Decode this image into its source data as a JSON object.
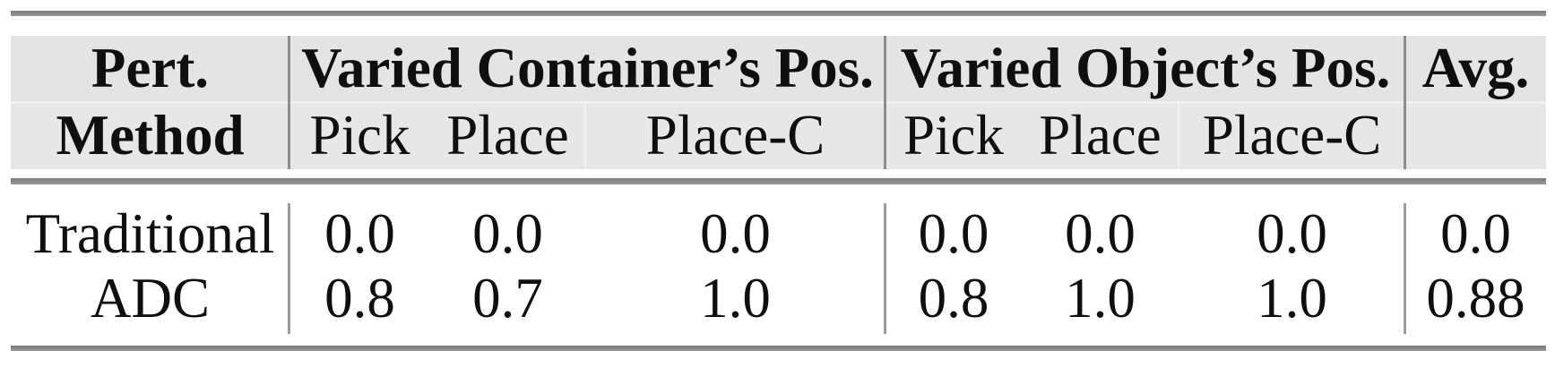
{
  "table": {
    "header": {
      "method_line1": "Pert.",
      "method_line2": "Method",
      "group_container": "Varied Container’s Pos.",
      "group_object": "Varied Object’s Pos.",
      "avg": "Avg.",
      "sub": [
        "Pick",
        "Place",
        "Place-C"
      ]
    },
    "rows": [
      {
        "method": "Traditional",
        "container": [
          "0.0",
          "0.0",
          "0.0"
        ],
        "object": [
          "0.0",
          "0.0",
          "0.0"
        ],
        "avg": "0.0"
      },
      {
        "method": "ADC",
        "container": [
          "0.8",
          "0.7",
          "1.0"
        ],
        "object": [
          "0.8",
          "1.0",
          "1.0"
        ],
        "avg": "0.88"
      }
    ]
  },
  "colors": {
    "header_bg_row1": "#e4e4e4",
    "header_bg_row2": "#e7e7e7",
    "rule": "#868686",
    "separator_header": "#8d8d8d",
    "separator_body": "#9b9b9b",
    "text": "#0f0f0f"
  },
  "chart_data": {
    "type": "table",
    "title": "",
    "column_groups": [
      "Pert. Method",
      "Varied Container’s Pos.",
      "Varied Object’s Pos.",
      "Avg."
    ],
    "subcolumns": [
      "Pick",
      "Place",
      "Place-C"
    ],
    "rows": [
      {
        "method": "Traditional",
        "varied_container_pos": [
          0.0,
          0.0,
          0.0
        ],
        "varied_object_pos": [
          0.0,
          0.0,
          0.0
        ],
        "avg": 0.0
      },
      {
        "method": "ADC",
        "varied_container_pos": [
          0.8,
          0.7,
          1.0
        ],
        "varied_object_pos": [
          0.8,
          1.0,
          1.0
        ],
        "avg": 0.88
      }
    ]
  }
}
